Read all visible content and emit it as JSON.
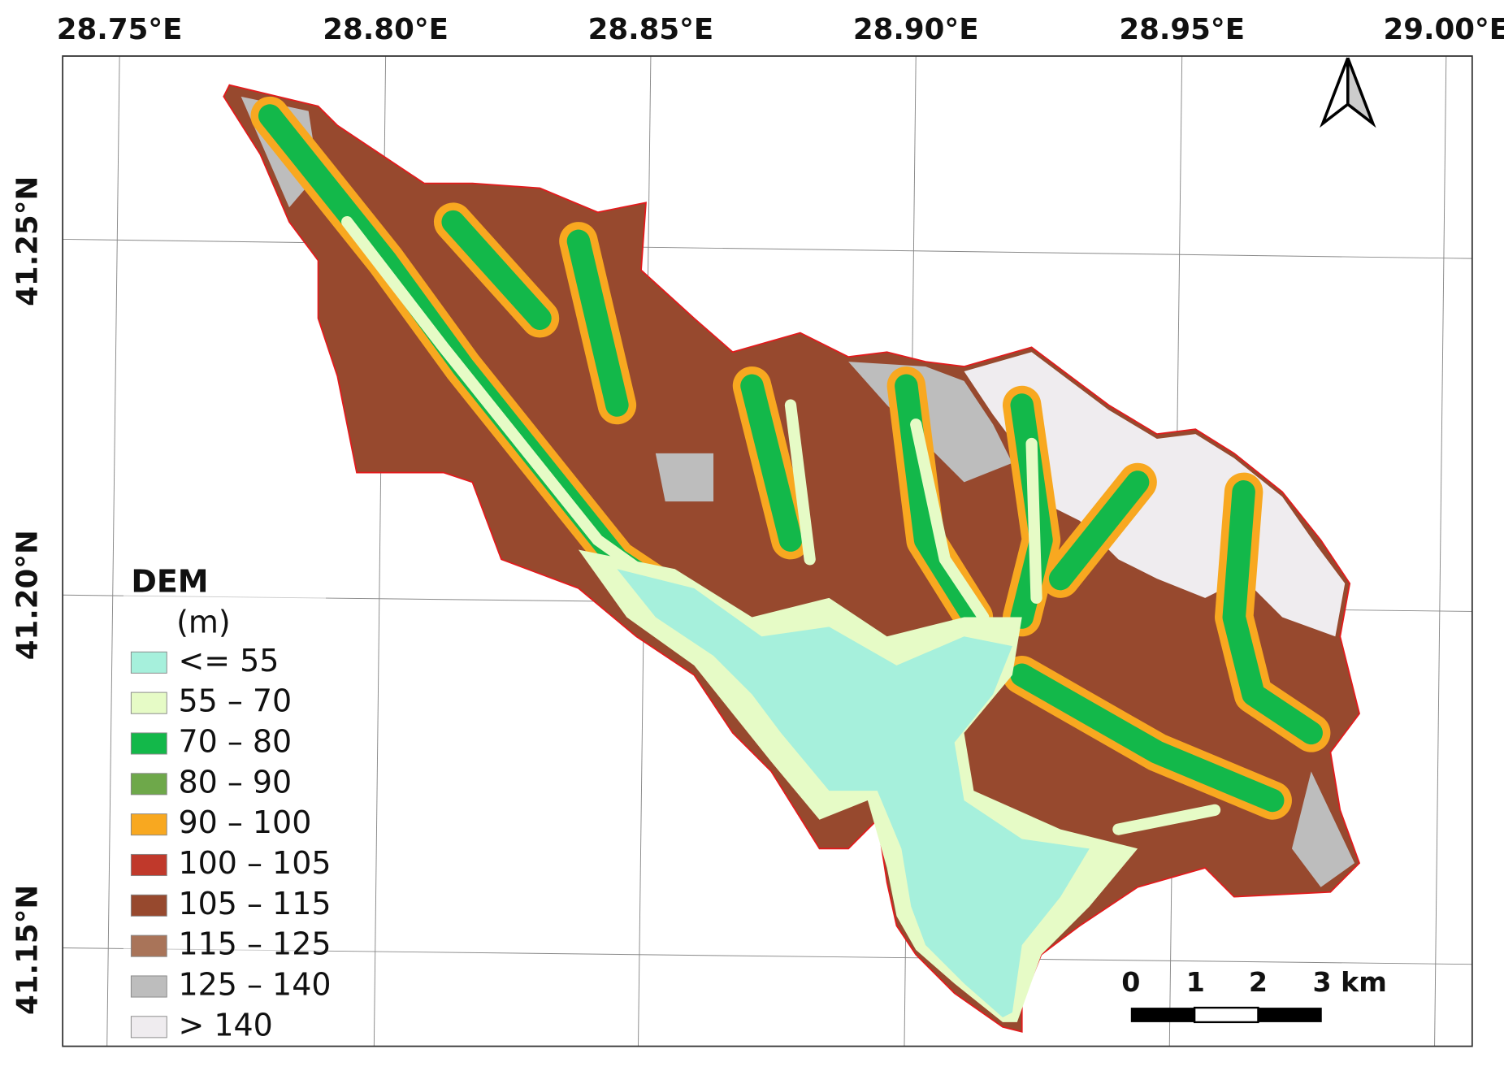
{
  "map": {
    "longitude_labels": [
      "28.75°E",
      "28.80°E",
      "28.85°E",
      "28.90°E",
      "28.95°E",
      "29.00°E"
    ],
    "latitude_labels": [
      "41.25°N",
      "41.20°N",
      "41.15°N"
    ],
    "legend": {
      "title": "DEM",
      "unit": "(m)",
      "items": [
        {
          "label": "<= 55",
          "color": "#a6f0dc"
        },
        {
          "label": "55 – 70",
          "color": "#e6fbc6"
        },
        {
          "label": "70 – 80",
          "color": "#13b84a"
        },
        {
          "label": "80 – 90",
          "color": "#6ea84a"
        },
        {
          "label": "90 – 100",
          "color": "#f8a820"
        },
        {
          "label": "100 – 105",
          "color": "#c0392b"
        },
        {
          "label": "105 – 115",
          "color": "#97492e"
        },
        {
          "label": "115 – 125",
          "color": "#a97459"
        },
        {
          "label": "125 – 140",
          "color": "#bdbdbd"
        },
        {
          "label": "> 140",
          "color": "#efecef"
        }
      ]
    },
    "scale_bar": {
      "labels": [
        "0",
        "1",
        "2",
        "3 km"
      ]
    }
  }
}
